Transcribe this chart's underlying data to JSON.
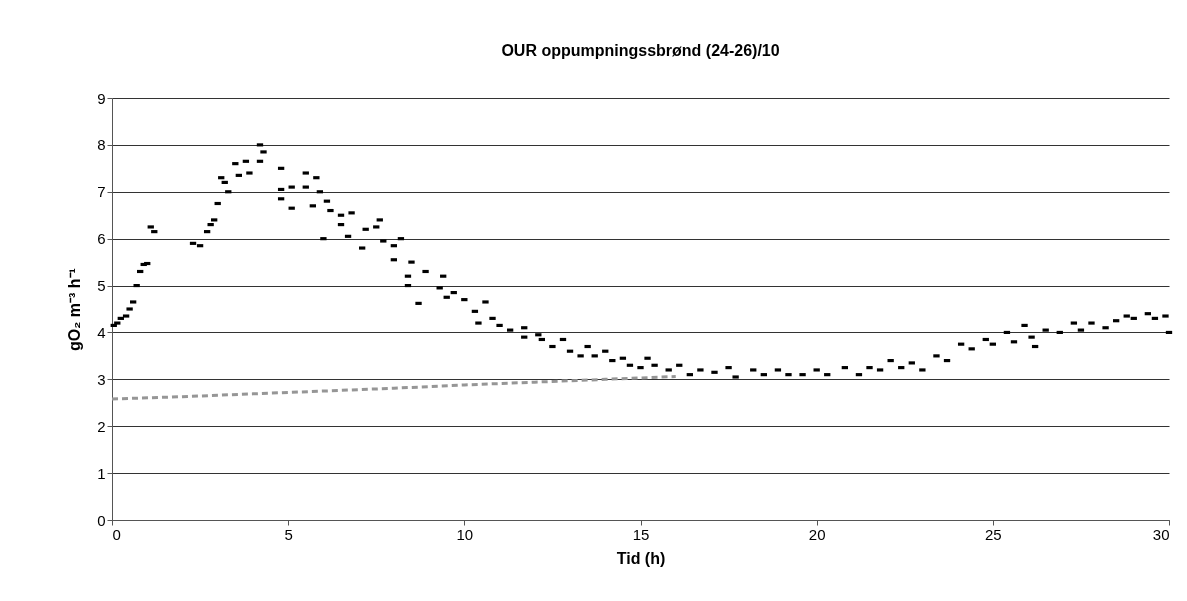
{
  "chart_data": {
    "type": "scatter",
    "title": "OUR oppumpningssbrønd (24-26)/10",
    "xlabel": "Tid (h)",
    "ylabel": "gO₂ m⁻³ h⁻¹",
    "xlim": [
      0,
      30
    ],
    "xticks": [
      0,
      5,
      10,
      15,
      20,
      25,
      30
    ],
    "ylim": [
      0,
      9
    ],
    "yticks": [
      0,
      1,
      2,
      3,
      4,
      5,
      6,
      7,
      8,
      9
    ],
    "grid": "y",
    "series": [
      {
        "color": "#000000",
        "x": [
          0.05,
          0.15,
          0.25,
          0.4,
          0.5,
          0.6,
          0.7,
          0.8,
          0.9,
          1.0,
          1.1,
          1.2,
          2.3,
          2.5,
          2.7,
          2.8,
          2.9,
          3.0,
          3.1,
          3.2,
          3.3,
          3.5,
          3.6,
          3.8,
          3.9,
          4.2,
          4.2,
          4.3,
          4.8,
          4.8,
          4.8,
          5.1,
          5.1,
          5.5,
          5.5,
          5.7,
          5.8,
          5.9,
          6.0,
          6.1,
          6.2,
          6.5,
          6.5,
          6.7,
          6.8,
          7.1,
          7.2,
          7.5,
          7.6,
          7.7,
          8.0,
          8.0,
          8.2,
          8.4,
          8.4,
          8.5,
          8.7,
          8.9,
          9.3,
          9.4,
          9.5,
          9.7,
          10.0,
          10.3,
          10.4,
          10.6,
          10.8,
          11.0,
          11.3,
          11.7,
          11.7,
          12.1,
          12.2,
          12.5,
          12.8,
          13.0,
          13.3,
          13.5,
          13.7,
          14.0,
          14.2,
          14.5,
          14.7,
          15.0,
          15.2,
          15.4,
          15.8,
          16.1,
          16.4,
          16.7,
          17.1,
          17.5,
          17.7,
          18.2,
          18.5,
          18.9,
          19.2,
          19.6,
          20.0,
          20.3,
          20.8,
          21.2,
          21.5,
          21.8,
          22.1,
          22.4,
          22.7,
          23.0,
          23.4,
          23.7,
          24.1,
          24.4,
          24.8,
          25.0,
          25.4,
          25.6,
          25.9,
          26.1,
          26.2,
          26.5,
          26.9,
          27.3,
          27.5,
          27.8,
          28.2,
          28.5,
          28.8,
          29.0,
          29.4,
          29.6,
          29.9,
          30.0
        ],
        "values": [
          4.15,
          4.2,
          4.3,
          4.35,
          4.5,
          4.65,
          5.0,
          5.3,
          5.45,
          5.47,
          6.25,
          6.15,
          5.9,
          5.85,
          6.15,
          6.3,
          6.4,
          6.75,
          7.3,
          7.2,
          7.0,
          7.6,
          7.35,
          7.65,
          7.4,
          8.0,
          7.65,
          7.85,
          7.5,
          7.05,
          6.85,
          7.1,
          6.65,
          7.4,
          7.1,
          6.7,
          7.3,
          7.0,
          6.0,
          6.8,
          6.6,
          6.5,
          6.3,
          6.05,
          6.55,
          5.8,
          6.2,
          6.25,
          6.4,
          5.95,
          5.85,
          5.55,
          6.0,
          5.2,
          5.0,
          5.5,
          4.62,
          5.3,
          4.95,
          5.2,
          4.75,
          4.85,
          4.7,
          4.45,
          4.2,
          4.65,
          4.3,
          4.15,
          4.05,
          4.1,
          3.9,
          3.95,
          3.85,
          3.7,
          3.85,
          3.6,
          3.5,
          3.7,
          3.5,
          3.6,
          3.4,
          3.45,
          3.3,
          3.25,
          3.45,
          3.3,
          3.2,
          3.3,
          3.1,
          3.2,
          3.15,
          3.25,
          3.05,
          3.2,
          3.1,
          3.2,
          3.1,
          3.1,
          3.2,
          3.1,
          3.25,
          3.1,
          3.25,
          3.2,
          3.4,
          3.25,
          3.35,
          3.2,
          3.5,
          3.4,
          3.75,
          3.65,
          3.85,
          3.75,
          4.0,
          3.8,
          4.15,
          3.9,
          3.7,
          4.05,
          4.0,
          4.2,
          4.05,
          4.2,
          4.1,
          4.25,
          4.35,
          4.3,
          4.4,
          4.3,
          4.35,
          4.0
        ]
      },
      {
        "type": "line",
        "color": "#969696",
        "line_style": "dashed",
        "x": [
          0,
          2,
          4,
          6,
          8,
          10,
          12,
          14,
          16
        ],
        "values": [
          2.58,
          2.63,
          2.69,
          2.75,
          2.81,
          2.88,
          2.94,
          3.0,
          3.06
        ]
      }
    ]
  }
}
